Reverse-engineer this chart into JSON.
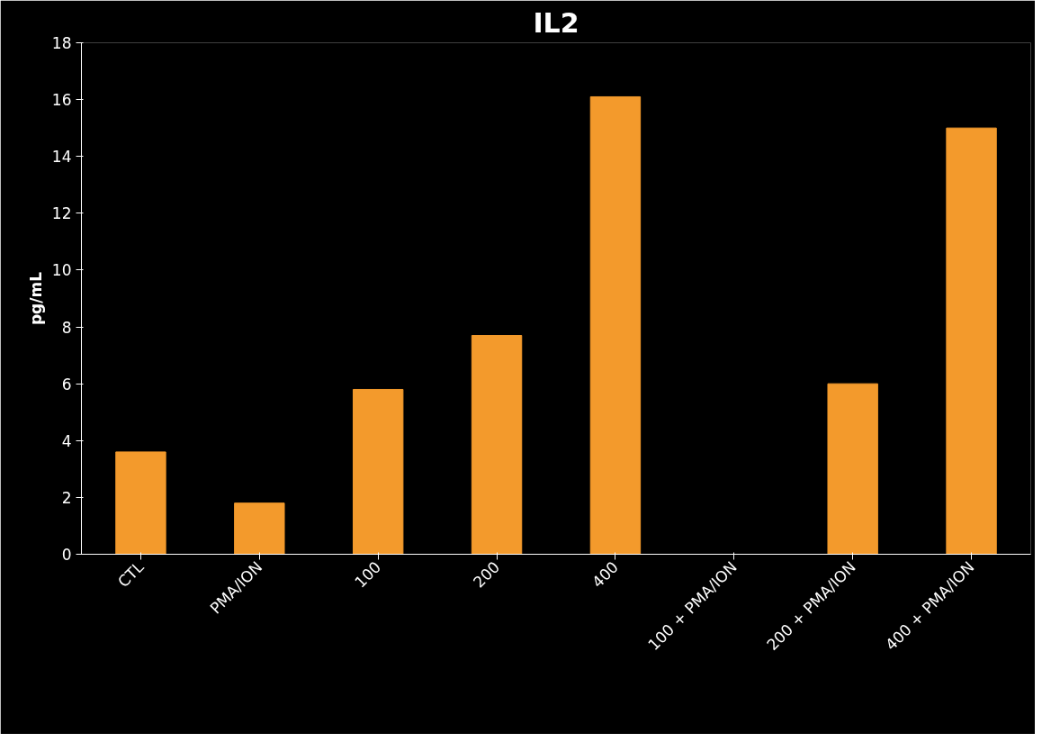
{
  "chart_data": {
    "type": "bar",
    "title": "IL2",
    "ylabel": "pg/mL",
    "categories": [
      "CTL",
      "PMA/ION",
      "100",
      "200",
      "400",
      "100 + PMA/ION",
      "200 + PMA/ION",
      "400 + PMA/ION"
    ],
    "values": [
      3.6,
      1.8,
      5.8,
      7.7,
      16.1,
      0,
      6.0,
      15.0
    ],
    "color": "#f39a2c",
    "ylim": [
      0,
      18
    ],
    "yticks": [
      0,
      2,
      4,
      6,
      8,
      10,
      12,
      14,
      16,
      18
    ],
    "grid": false
  }
}
